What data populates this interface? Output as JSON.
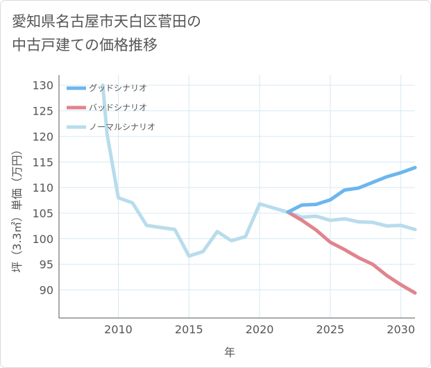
{
  "title": {
    "line1": "愛知県名古屋市天白区菅田の",
    "line2": "中古戸建ての価格推移"
  },
  "chart_data": {
    "type": "line",
    "xlabel": "年",
    "ylabel": "坪（3.3㎡）単価（万円）",
    "xlim": [
      2005.8,
      2031
    ],
    "ylim": [
      84.5,
      132
    ],
    "x_ticks": [
      2010,
      2015,
      2020,
      2025,
      2030
    ],
    "y_ticks": [
      90,
      95,
      100,
      105,
      110,
      115,
      120,
      125,
      130
    ],
    "grid": true,
    "legend_position": "top-left",
    "series": [
      {
        "name": "グッドシナリオ",
        "color": "#6cb6ee",
        "x": [
          2022,
          2023,
          2024,
          2025,
          2026,
          2027,
          2028,
          2029,
          2030,
          2031
        ],
        "y": [
          105.2,
          106.6,
          106.7,
          107.6,
          109.5,
          109.9,
          111.0,
          112.1,
          112.9,
          113.9
        ]
      },
      {
        "name": "バッドシナリオ",
        "color": "#e0848e",
        "x": [
          2022,
          2023,
          2024,
          2025,
          2026,
          2027,
          2028,
          2029,
          2030,
          2031
        ],
        "y": [
          105.2,
          103.6,
          101.7,
          99.3,
          97.9,
          96.3,
          95.0,
          92.8,
          91.0,
          89.4
        ]
      },
      {
        "name": "ノーマルシナリオ",
        "color": "#b8dcec",
        "x": [
          2008.9,
          2009.2,
          2010,
          2011,
          2012,
          2013,
          2014,
          2015,
          2016,
          2017,
          2018,
          2019,
          2020,
          2021,
          2022,
          2023,
          2024,
          2025,
          2026,
          2027,
          2028,
          2029,
          2030,
          2031
        ],
        "y": [
          130.0,
          120.5,
          108.0,
          107.0,
          102.6,
          102.2,
          101.8,
          96.6,
          97.5,
          101.4,
          99.6,
          100.4,
          106.8,
          106.0,
          105.2,
          104.2,
          104.4,
          103.6,
          103.9,
          103.3,
          103.2,
          102.5,
          102.6,
          101.8
        ]
      }
    ]
  }
}
